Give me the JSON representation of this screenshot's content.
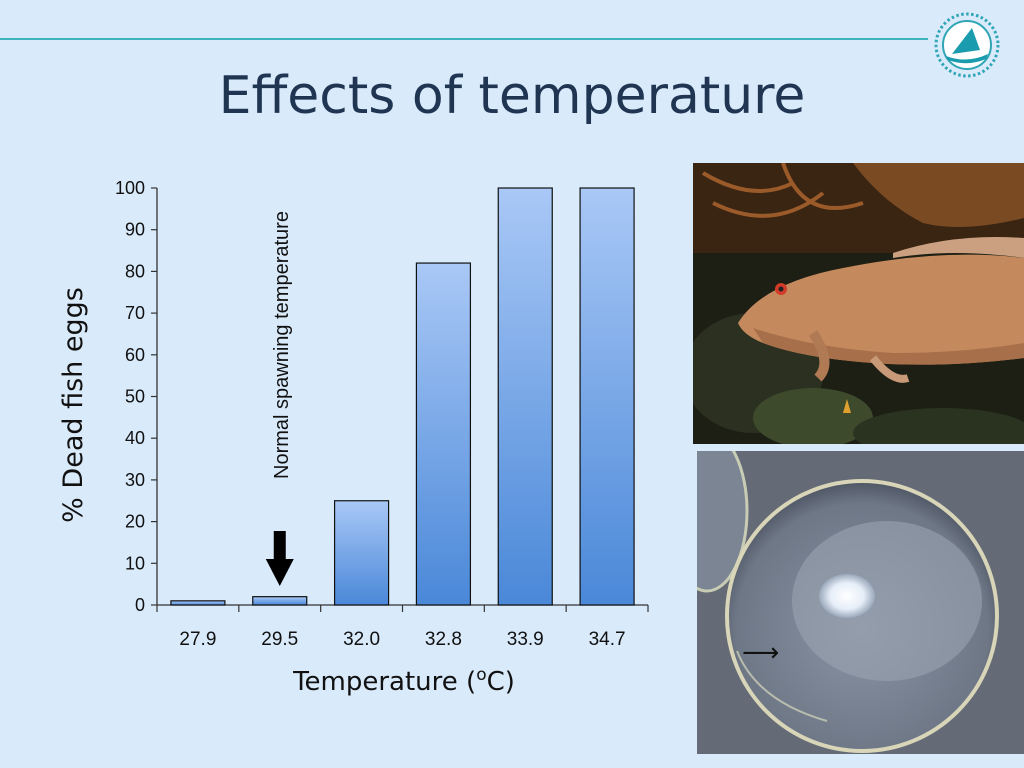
{
  "slide": {
    "title": "Effects of temperature"
  },
  "chart_data": {
    "type": "bar",
    "categories": [
      "27.9",
      "29.5",
      "32.0",
      "32.8",
      "33.9",
      "34.7"
    ],
    "values": [
      1,
      2,
      25,
      82,
      100,
      100
    ],
    "ylim": [
      0,
      100
    ],
    "yticks": [
      0,
      10,
      20,
      30,
      40,
      50,
      60,
      70,
      80,
      90,
      100
    ],
    "ytick_labels": [
      "0",
      "10",
      "20",
      "30",
      "40",
      "50",
      "60",
      "70",
      "80",
      "90",
      "100"
    ],
    "ylabel": "% Dead fish eggs",
    "xlabel_main": "Temperature (",
    "xlabel_sup": "o",
    "xlabel_end": "C)",
    "annotation": {
      "text": "Normal spawning temperature",
      "category": "29.5",
      "arrow": "down-arrow"
    },
    "colors": {
      "bar_top": "#a9c8f6",
      "bar_bottom": "#4a88d8",
      "bar_stroke": "#111111"
    }
  },
  "photos": {
    "fish": {
      "kind": "photo",
      "subject": "grouper fish on reef"
    },
    "egg": {
      "kind": "photo",
      "subject": "fish egg under microscope",
      "arrow_glyph": "⟶"
    }
  },
  "logo": {
    "icon": "sailboat-logo-icon"
  }
}
